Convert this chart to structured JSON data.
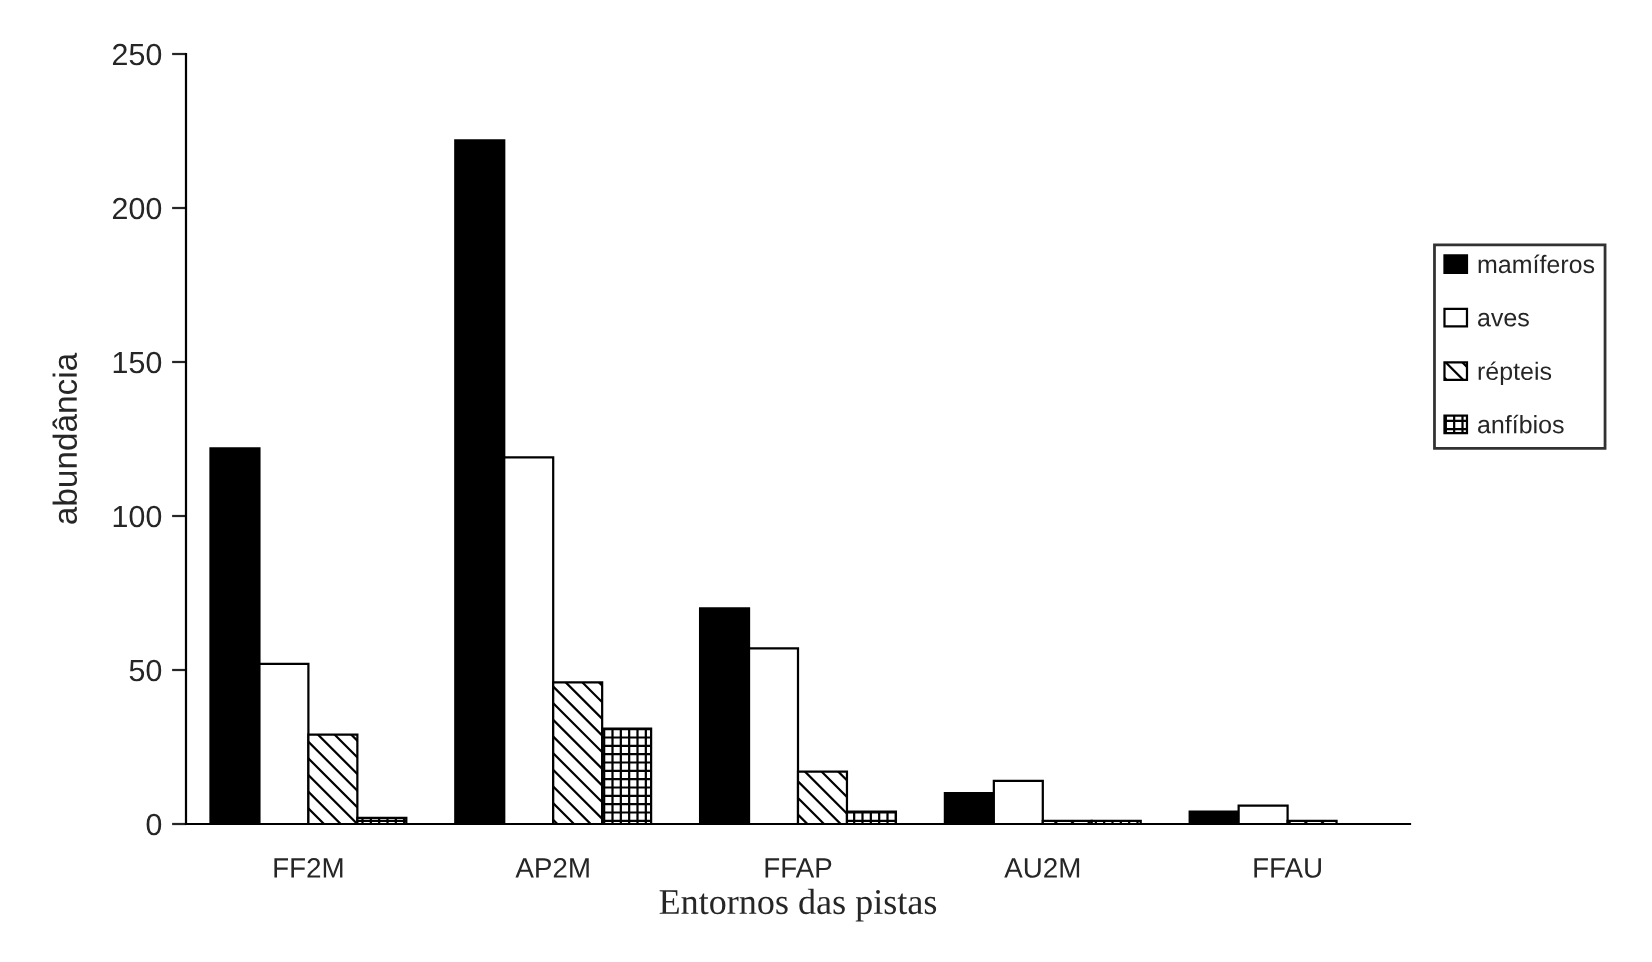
{
  "chart_data": {
    "type": "bar",
    "xlabel": "Entornos das pistas",
    "ylabel": "abundância",
    "categories": [
      "FF2M",
      "AP2M",
      "FFAP",
      "AU2M",
      "FFAU"
    ],
    "series": [
      {
        "name": "mamíferos",
        "color": "#000000",
        "values": [
          122,
          222,
          70,
          10,
          4
        ]
      },
      {
        "name": "aves",
        "color": "#ffffff",
        "values": [
          52,
          119,
          57,
          14,
          6
        ]
      },
      {
        "name": "répteis",
        "color": "#000000",
        "values": [
          29,
          46,
          17,
          1,
          1
        ]
      },
      {
        "name": "anfíbios",
        "color": "#000000",
        "values": [
          2,
          31,
          4,
          1,
          0
        ]
      }
    ],
    "ylim": [
      0,
      250
    ],
    "yticks": [
      0,
      50,
      100,
      150,
      200,
      250
    ],
    "grid": false,
    "legend": "right"
  }
}
